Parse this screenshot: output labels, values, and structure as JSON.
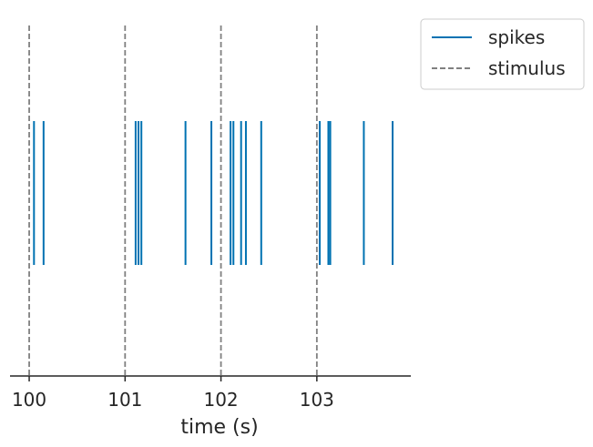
{
  "chart_data": {
    "type": "line",
    "title": "",
    "xlabel": "time (s)",
    "ylabel": "",
    "xlim": [
      99.8,
      103.98
    ],
    "ylim": [
      0,
      1
    ],
    "x_ticks": [
      100,
      101,
      102,
      103
    ],
    "x_tick_labels": [
      "100",
      "101",
      "102",
      "103"
    ],
    "grid": false,
    "legend_position": "outside-top-right",
    "series": [
      {
        "name": "spikes",
        "kind": "event-raster",
        "color": "#0072b2",
        "line_style": "solid",
        "values": [
          100.05,
          100.15,
          101.11,
          101.14,
          101.17,
          101.63,
          101.9,
          102.1,
          102.13,
          102.21,
          102.26,
          102.42,
          103.03,
          103.12,
          103.14,
          103.49,
          103.79
        ]
      },
      {
        "name": "stimulus",
        "kind": "vertical-lines",
        "color": "#808080",
        "line_style": "dashed",
        "values": [
          100,
          101,
          102,
          103
        ]
      }
    ],
    "legend": [
      "spikes",
      "stimulus"
    ]
  }
}
